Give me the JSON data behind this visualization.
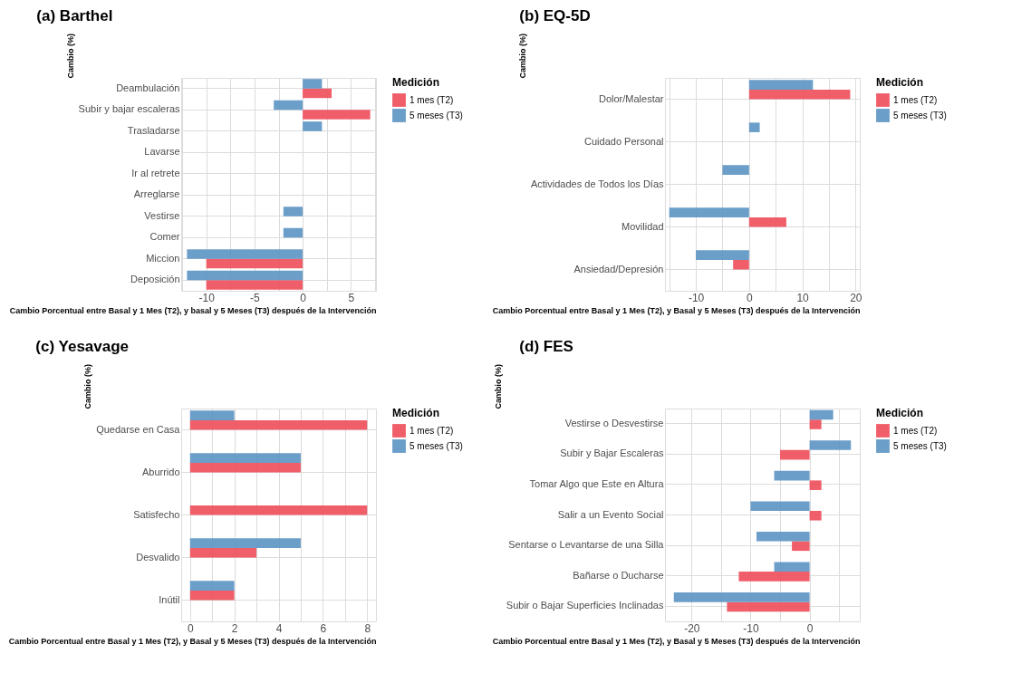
{
  "chart_data": [
    {
      "type": "bar",
      "orientation": "horizontal",
      "title": "(a) Barthel",
      "xlabel": "Cambio Porcentual entre Basal y 1 Mes (T2), y basal y 5 Meses (T3) después de la Intervención",
      "ylabel": "Cambio (%)",
      "legend_title": "Medición",
      "legend": "right",
      "grid": true,
      "categories": [
        "Deambulación",
        "Subir y bajar escaleras",
        "Trasladarse",
        "Lavarse",
        "Ir al retrete",
        "Arreglarse",
        "Vestirse",
        "Comer",
        "Miccion",
        "Deposición"
      ],
      "xlim": [
        -12.6,
        7.6
      ],
      "xticks": [
        {
          "value": -12.5,
          "label": null
        },
        -10,
        {
          "value": -7.5,
          "label": null
        },
        -5,
        {
          "value": -2.5,
          "label": null
        },
        0,
        {
          "value": 2.5,
          "label": null
        },
        5,
        {
          "value": 7.5,
          "label": null
        }
      ],
      "series": [
        {
          "name": "1 mes (T2)",
          "color": "#ee4d5a",
          "values": [
            3,
            7,
            null,
            null,
            null,
            null,
            null,
            null,
            -10,
            -10
          ]
        },
        {
          "name": "5 meses (T3)",
          "color": "#5b93c2",
          "values": [
            2,
            -3,
            2,
            null,
            null,
            null,
            -2,
            -2,
            -12,
            -12
          ]
        }
      ]
    },
    {
      "type": "bar",
      "orientation": "horizontal",
      "title": "(b) EQ-5D",
      "xlabel": "Cambio Porcentual entre Basal y 1 Mes (T2), y Basal y 5 Meses (T3) después de la Intervención",
      "ylabel": "Cambio (%)",
      "legend_title": "Medición",
      "legend": "right",
      "grid": true,
      "categories": [
        "Dolor/Malestar",
        "Cuidado Personal",
        "Actividades de Todos los Días",
        "Movilidad",
        "Ansiedad/Depresión"
      ],
      "xlim": [
        -15.8,
        20.8
      ],
      "xticks": [
        {
          "value": -15,
          "label": null
        },
        -10,
        {
          "value": -5,
          "label": null
        },
        0,
        {
          "value": 5,
          "label": null
        },
        10,
        {
          "value": 15,
          "label": null
        },
        20
      ],
      "series": [
        {
          "name": "1 mes (T2)",
          "color": "#ee4d5a",
          "values": [
            19,
            null,
            null,
            7,
            -3
          ]
        },
        {
          "name": "5 meses (T3)",
          "color": "#5b93c2",
          "values": [
            12,
            2,
            -5,
            -15,
            -10
          ]
        }
      ]
    },
    {
      "type": "bar",
      "orientation": "horizontal",
      "title": "(c) Yesavage",
      "xlabel": "Cambio Porcentual entre Basal y 1 Mes (T2), y Basal y 5 Meses (T3) después de la Intervención",
      "ylabel": "Cambio (%)",
      "legend_title": "Medición",
      "legend": "right",
      "grid": true,
      "categories": [
        "Quedarse en Casa",
        "Aburrido",
        "Satisfecho",
        "Desvalido",
        "Inútil"
      ],
      "xlim": [
        -0.4,
        8.4
      ],
      "xticks": [
        0,
        {
          "value": 1,
          "label": null
        },
        2,
        {
          "value": 3,
          "label": null
        },
        4,
        {
          "value": 5,
          "label": null
        },
        6,
        {
          "value": 7,
          "label": null
        },
        8
      ],
      "series": [
        {
          "name": "1 mes (T2)",
          "color": "#ee4d5a",
          "values": [
            8,
            5,
            8,
            3,
            2
          ]
        },
        {
          "name": "5 meses (T3)",
          "color": "#5b93c2",
          "values": [
            2,
            5,
            null,
            5,
            2
          ]
        }
      ]
    },
    {
      "type": "bar",
      "orientation": "horizontal",
      "title": "(d) FES",
      "xlabel": "Cambio Porcentual entre Basal y 1 Mes (T2), y Basal y 5 Meses (T3) después de la Intervención",
      "ylabel": "Cambio (%)",
      "legend_title": "Medición",
      "legend": "right",
      "grid": true,
      "categories": [
        "Vestirse o Desvestirse",
        "Subir y Bajar Escaleras",
        "Tomar Algo que Este en Altura",
        "Salir a un Evento Social",
        "Sentarse o Levantarse de una Silla",
        "Bañarse o Ducharse",
        "Subir o Bajar Superficies Inclinadas"
      ],
      "xlim": [
        -24.5,
        8.5
      ],
      "xticks": [
        -20,
        {
          "value": -15,
          "label": null
        },
        -10,
        {
          "value": -5,
          "label": null
        },
        0,
        {
          "value": 5,
          "label": null
        }
      ],
      "series": [
        {
          "name": "1 mes (T2)",
          "color": "#ee4d5a",
          "values": [
            2,
            -5,
            2,
            2,
            -3,
            -12,
            -14
          ]
        },
        {
          "name": "5 meses (T3)",
          "color": "#5b93c2",
          "values": [
            4,
            7,
            -6,
            -10,
            -9,
            -6,
            -23
          ]
        }
      ]
    }
  ]
}
